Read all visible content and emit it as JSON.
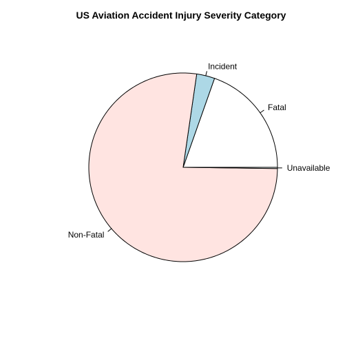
{
  "chart_data": {
    "type": "pie",
    "title": "US Aviation Accident Injury Severity Category",
    "start_angle_deg": 0,
    "direction": "counterclockwise",
    "slices": [
      {
        "label": "Fatal",
        "value": 19.6,
        "color": "#ffffff"
      },
      {
        "label": "Incident",
        "value": 3.1,
        "color": "#add8e6"
      },
      {
        "label": "Non-Fatal",
        "value": 77.1,
        "color": "#ffe4e1"
      },
      {
        "label": "Unavailable",
        "value": 0.2,
        "color": "#f0ffff"
      }
    ]
  }
}
